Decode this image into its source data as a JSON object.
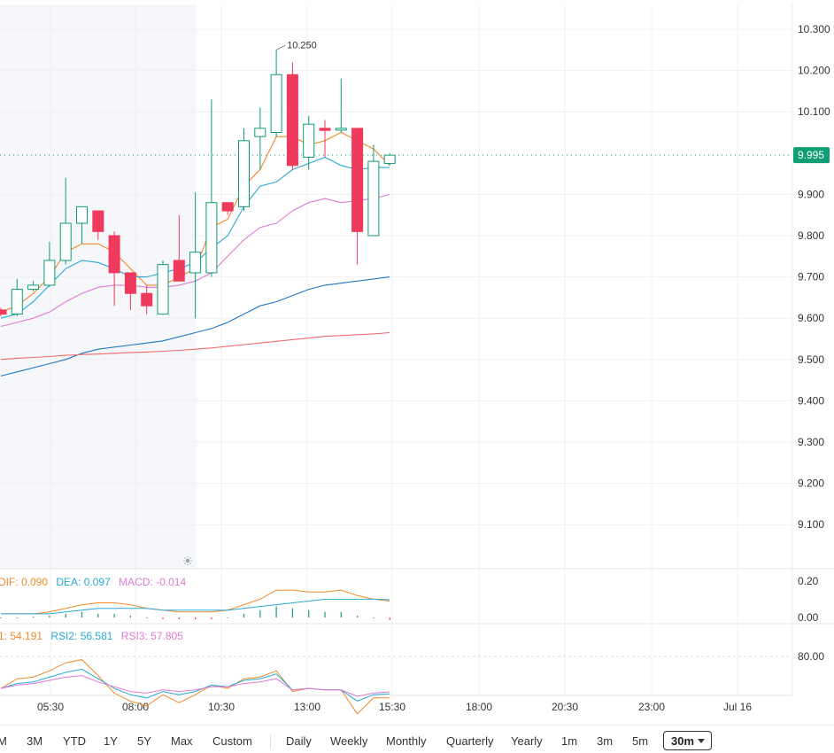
{
  "chart_data": {
    "type": "candlestick",
    "interval": "30m",
    "price_axis": {
      "ticks": [
        "10.300",
        "10.200",
        "10.100",
        "9.900",
        "9.800",
        "9.700",
        "9.600",
        "9.500",
        "9.400",
        "9.300",
        "9.200",
        "9.100"
      ]
    },
    "last_price": "9.995",
    "high_annotation": "10.250",
    "time_axis": {
      "labels": [
        "05:30",
        "08:00",
        "10:30",
        "13:00",
        "15:30",
        "18:00",
        "20:30",
        "23:00",
        "Jul 16"
      ]
    },
    "candles": [
      {
        "o": 9.62,
        "h": 9.625,
        "l": 9.605,
        "c": 9.61
      },
      {
        "o": 9.61,
        "h": 9.695,
        "l": 9.605,
        "c": 9.67
      },
      {
        "o": 9.67,
        "h": 9.69,
        "l": 9.665,
        "c": 9.68
      },
      {
        "o": 9.68,
        "h": 9.785,
        "l": 9.675,
        "c": 9.74
      },
      {
        "o": 9.74,
        "h": 9.94,
        "l": 9.73,
        "c": 9.83
      },
      {
        "o": 9.83,
        "h": 9.87,
        "l": 9.78,
        "c": 9.87
      },
      {
        "o": 9.86,
        "h": 9.86,
        "l": 9.79,
        "c": 9.81
      },
      {
        "o": 9.8,
        "h": 9.81,
        "l": 9.63,
        "c": 9.71
      },
      {
        "o": 9.71,
        "h": 9.71,
        "l": 9.62,
        "c": 9.66
      },
      {
        "o": 9.66,
        "h": 9.68,
        "l": 9.61,
        "c": 9.63
      },
      {
        "o": 9.61,
        "h": 9.74,
        "l": 9.61,
        "c": 9.73
      },
      {
        "o": 9.74,
        "h": 9.85,
        "l": 9.69,
        "c": 9.69
      },
      {
        "o": 9.71,
        "h": 9.905,
        "l": 9.6,
        "c": 9.76
      },
      {
        "o": 9.71,
        "h": 10.13,
        "l": 9.7,
        "c": 9.88
      },
      {
        "o": 9.88,
        "h": 9.88,
        "l": 9.85,
        "c": 9.86
      },
      {
        "o": 9.87,
        "h": 10.06,
        "l": 9.86,
        "c": 10.03
      },
      {
        "o": 10.04,
        "h": 10.11,
        "l": 9.96,
        "c": 10.06
      },
      {
        "o": 10.05,
        "h": 10.25,
        "l": 10.04,
        "c": 10.19
      },
      {
        "o": 10.19,
        "h": 10.22,
        "l": 9.96,
        "c": 9.97
      },
      {
        "o": 9.99,
        "h": 10.09,
        "l": 9.96,
        "c": 10.07
      },
      {
        "o": 10.06,
        "h": 10.08,
        "l": 9.99,
        "c": 10.055
      },
      {
        "o": 10.06,
        "h": 10.18,
        "l": 10.05,
        "c": 10.06
      },
      {
        "o": 10.06,
        "h": 10.06,
        "l": 9.73,
        "c": 9.81
      },
      {
        "o": 9.8,
        "h": 10.02,
        "l": 9.8,
        "c": 9.98
      },
      {
        "o": 9.975,
        "h": 10.0,
        "l": 9.97,
        "c": 9.995
      }
    ],
    "overlays": [
      {
        "color": "#f08a2b",
        "values": [
          9.615,
          9.63,
          9.66,
          9.7,
          9.76,
          9.78,
          9.78,
          9.76,
          9.72,
          9.68,
          9.68,
          9.7,
          9.72,
          9.82,
          9.84,
          9.92,
          9.96,
          10.04,
          10.04,
          10.02,
          10.03,
          10.05,
          10.03,
          10.01,
          9.97
        ]
      },
      {
        "color": "#29a9d6",
        "values": [
          9.6,
          9.61,
          9.64,
          9.68,
          9.72,
          9.74,
          9.735,
          9.72,
          9.7,
          9.7,
          9.71,
          9.72,
          9.735,
          9.77,
          9.8,
          9.87,
          9.92,
          9.93,
          9.96,
          9.975,
          9.99,
          9.97,
          9.96,
          9.965,
          9.965
        ]
      },
      {
        "color": "#e07bd6",
        "values": [
          9.58,
          9.59,
          9.6,
          9.615,
          9.64,
          9.66,
          9.675,
          9.68,
          9.68,
          9.675,
          9.675,
          9.68,
          9.69,
          9.71,
          9.75,
          9.79,
          9.82,
          9.83,
          9.86,
          9.88,
          9.89,
          9.88,
          9.885,
          9.89,
          9.9
        ]
      },
      {
        "color": "#1f77c4",
        "values": [
          9.46,
          9.47,
          9.48,
          9.49,
          9.5,
          9.515,
          9.525,
          9.53,
          9.535,
          9.54,
          9.545,
          9.555,
          9.565,
          9.575,
          9.59,
          9.61,
          9.63,
          9.64,
          9.655,
          9.67,
          9.68,
          9.685,
          9.69,
          9.695,
          9.7
        ]
      },
      {
        "color": "#f06b6b",
        "values": [
          9.5,
          9.503,
          9.505,
          9.507,
          9.51,
          9.512,
          9.513,
          9.515,
          9.517,
          9.518,
          9.52,
          9.522,
          9.525,
          9.528,
          9.532,
          9.536,
          9.54,
          9.544,
          9.548,
          9.552,
          9.556,
          9.558,
          9.56,
          9.562,
          9.565
        ]
      }
    ],
    "macd": {
      "dif_label": "DIF: 0.090",
      "dea_label": "DEA: 0.097",
      "macd_label": "MACD: -0.014",
      "axis_ticks": [
        "0.20",
        "0.00"
      ],
      "dif": [
        0.02,
        0.02,
        0.02,
        0.03,
        0.05,
        0.07,
        0.08,
        0.08,
        0.07,
        0.05,
        0.04,
        0.03,
        0.03,
        0.03,
        0.04,
        0.07,
        0.1,
        0.15,
        0.15,
        0.14,
        0.14,
        0.15,
        0.12,
        0.1,
        0.09
      ],
      "dea": [
        0.02,
        0.02,
        0.02,
        0.02,
        0.03,
        0.04,
        0.05,
        0.05,
        0.05,
        0.05,
        0.04,
        0.04,
        0.04,
        0.04,
        0.04,
        0.05,
        0.06,
        0.07,
        0.08,
        0.09,
        0.1,
        0.1,
        0.1,
        0.1,
        0.097
      ],
      "hist": [
        0.0,
        0.0,
        0.005,
        0.01,
        0.02,
        0.03,
        0.02,
        0.02,
        0.01,
        0.0,
        -0.01,
        -0.01,
        -0.01,
        -0.01,
        0.0,
        0.02,
        0.04,
        0.06,
        0.05,
        0.04,
        0.03,
        0.03,
        0.01,
        -0.005,
        -0.014
      ]
    },
    "rsi": {
      "rsi1_label": "1: 54.191",
      "rsi2_label": "RSI2: 56.581",
      "rsi3_label": "RSI3: 57.805",
      "axis_ticks": [
        "80.00"
      ],
      "rsi1": [
        60,
        66,
        67,
        71,
        76,
        78,
        68,
        57,
        52,
        49,
        56,
        51,
        56,
        62,
        60,
        66,
        67,
        71,
        58,
        60,
        59,
        59,
        44,
        54,
        54
      ],
      "rsi2": [
        60,
        63,
        64,
        67,
        70,
        72,
        66,
        60,
        56,
        54,
        58,
        56,
        58,
        62,
        61,
        65,
        66,
        69,
        59,
        60,
        59,
        59,
        52,
        56,
        56.5
      ],
      "rsi3": [
        60,
        62,
        63,
        65,
        67,
        68,
        64,
        61,
        58,
        57,
        59,
        58,
        59,
        61,
        61,
        63,
        64,
        66,
        59,
        60,
        59,
        59,
        55,
        57,
        57.8
      ]
    }
  },
  "colors": {
    "up": "#0f9d74",
    "down": "#ef3a5d",
    "accent": "#0f9d74"
  },
  "timeframes": [
    "M",
    "3M",
    "YTD",
    "1Y",
    "5Y",
    "Max",
    "Custom"
  ],
  "periods": [
    "Daily",
    "Weekly",
    "Monthly",
    "Quarterly",
    "Yearly"
  ],
  "intervals": [
    "1m",
    "3m",
    "5m"
  ],
  "active_interval": "30m",
  "icons": {
    "session": "sun-icon"
  }
}
